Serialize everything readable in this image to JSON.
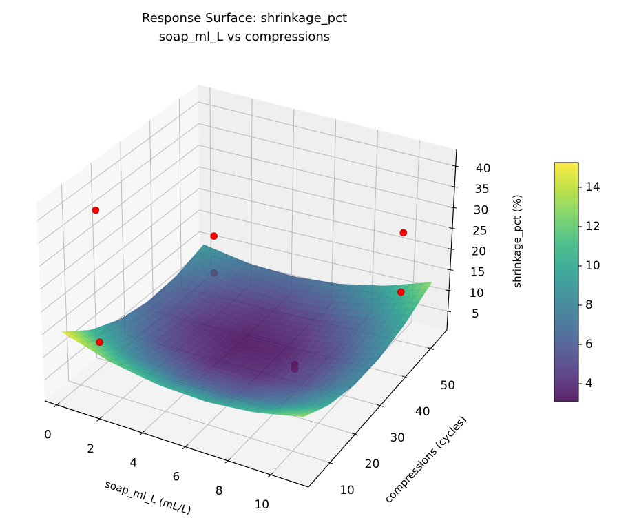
{
  "chart_data": {
    "type": "surface3d",
    "title": [
      "Response Surface: shrinkage_pct",
      "soap_ml_L vs compressions"
    ],
    "xlabel": "soap_ml_L (mL/L)",
    "ylabel": "compressions (cycles)",
    "zlabel": "shrinkage_pct (%)",
    "xlim": [
      -0.56,
      11.76
    ],
    "ylim": [
      1.5,
      56.5
    ],
    "zlim": [
      0.5,
      44
    ],
    "xticks": [
      0,
      2,
      4,
      6,
      8,
      10
    ],
    "yticks": [
      10,
      20,
      30,
      40,
      50
    ],
    "zticks": [
      5,
      10,
      15,
      20,
      25,
      30,
      35,
      40
    ],
    "grid": true,
    "colormap": "viridis",
    "surface": {
      "x": [
        0,
        2.24,
        4.48,
        6.72,
        8.96,
        11.2
      ],
      "y": [
        4,
        14,
        24,
        34,
        44,
        54
      ],
      "z": [
        [
          15.26,
          11.91,
          10.17,
          9.77,
          10.71,
          13.0
        ],
        [
          10.54,
          7.69,
          6.19,
          6.03,
          7.21,
          9.74
        ],
        [
          7.7,
          5.09,
          3.83,
          3.91,
          5.33,
          8.1
        ],
        [
          6.5,
          4.13,
          3.11,
          3.43,
          5.09,
          8.1
        ],
        [
          6.94,
          4.81,
          4.03,
          4.59,
          6.49,
          9.74
        ],
        [
          9.0,
          7.11,
          6.57,
          7.37,
          9.51,
          13.0
        ]
      ]
    },
    "points": {
      "color": "#ff0000",
      "x": [
        1.1,
        1.1,
        1.2,
        1.2,
        10.2,
        10.2,
        7.5,
        7.5
      ],
      "y": [
        9,
        9,
        49,
        49,
        50,
        50,
        31,
        31
      ],
      "z": [
        41,
        12,
        15,
        6.5,
        26,
        12,
        3.6,
        2.6
      ]
    },
    "colorbar": {
      "range": [
        3.09,
        15.26
      ],
      "ticks": [
        4,
        6,
        8,
        10,
        12,
        14
      ]
    }
  }
}
